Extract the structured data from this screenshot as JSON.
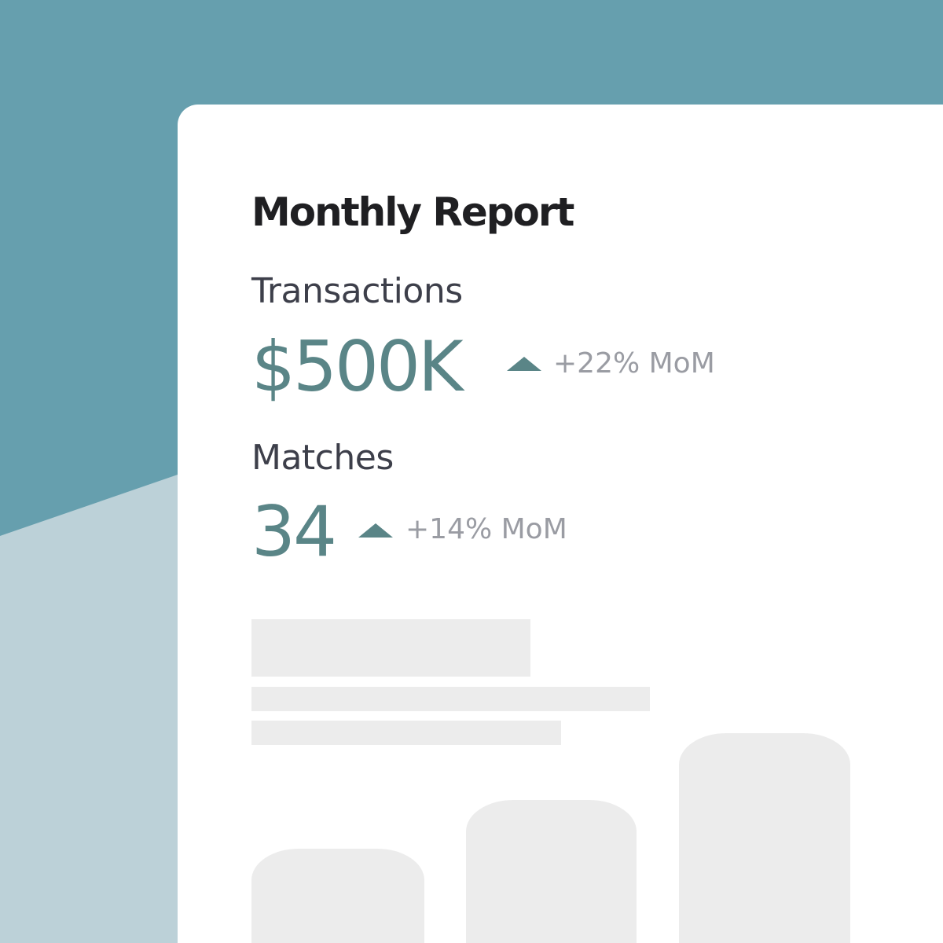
{
  "header": {
    "title": "Monthly Report"
  },
  "metrics": [
    {
      "label": "Transactions",
      "value": "$500K",
      "change": "+22% MoM"
    },
    {
      "label": "Matches",
      "value": "34",
      "change": "+14% MoM"
    }
  ]
}
